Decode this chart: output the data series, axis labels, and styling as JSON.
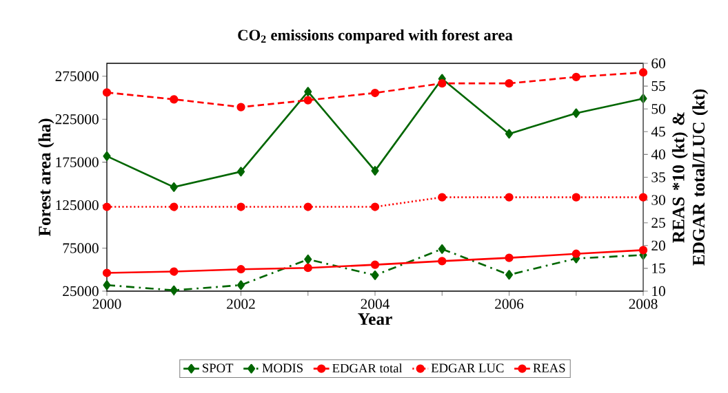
{
  "chart_data": {
    "type": "line",
    "title": "CO$_{2}$ emissions compared with forest area",
    "xlabel": "Year",
    "ylabel": "Forest area (ha)",
    "y2label": "REAS *10 (kt) & EDGAR total/LUC (kt)",
    "x": [
      2000,
      2001,
      2002,
      2003,
      2004,
      2005,
      2006,
      2007,
      2008
    ],
    "xlim": [
      2000,
      2008
    ],
    "xticks": [
      2000,
      {
        "value": 2001,
        "label": null
      },
      2002,
      {
        "value": 2003,
        "label": null
      },
      2004,
      {
        "value": 2005,
        "label": null
      },
      2006,
      {
        "value": 2007,
        "label": null
      },
      2008
    ],
    "ylim": [
      25000,
      290000
    ],
    "yticks": [
      25000,
      75000,
      125000,
      175000,
      225000,
      275000
    ],
    "y2lim": [
      10,
      60
    ],
    "y2ticks": [
      10,
      15,
      20,
      25,
      30,
      35,
      40,
      45,
      50,
      55,
      60
    ],
    "grid": false,
    "legend": "bottom",
    "series": [
      {
        "name": "SPOT",
        "color": "#006600",
        "marker": "diamond",
        "line_style": "solid",
        "values": [
          182000,
          146000,
          164000,
          257000,
          165000,
          272000,
          208000,
          232000,
          249000
        ]
      },
      {
        "name": "MODIS",
        "color": "#006600",
        "marker": "diamond",
        "line_style": "dashdot",
        "values": [
          32000,
          26000,
          32000,
          62000,
          43500,
          74000,
          44000,
          63000,
          67000
        ]
      },
      {
        "name": "EDGAR total",
        "color": "#ff0000",
        "marker": "circle",
        "line_style": "dashed",
        "axis": "y2",
        "values": [
          53.6,
          52.1,
          50.4,
          51.9,
          53.5,
          55.6,
          55.6,
          57.0,
          58.0
        ]
      },
      {
        "name": "EDGAR LUC",
        "color": "#ff0000",
        "marker": "circle",
        "line_style": "dotted",
        "axis": "y2",
        "values": [
          28.5,
          28.5,
          28.5,
          28.5,
          28.5,
          30.6,
          30.6,
          30.6,
          30.6
        ]
      },
      {
        "name": "REAS",
        "color": "#ff0000",
        "marker": "circle",
        "line_style": "solid",
        "axis": "y2",
        "values": [
          14.0,
          14.3,
          14.8,
          15.1,
          15.8,
          16.6,
          17.3,
          18.2,
          19.0
        ]
      }
    ]
  }
}
